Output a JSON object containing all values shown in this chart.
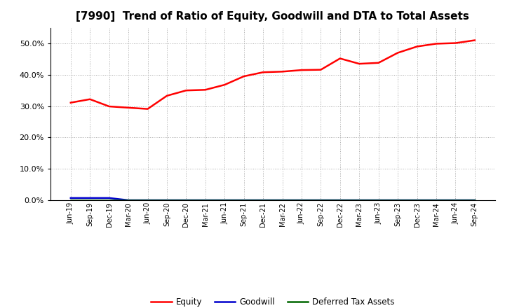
{
  "title": "[7990]  Trend of Ratio of Equity, Goodwill and DTA to Total Assets",
  "x_labels": [
    "Jun-19",
    "Sep-19",
    "Dec-19",
    "Mar-20",
    "Jun-20",
    "Sep-20",
    "Dec-20",
    "Mar-21",
    "Jun-21",
    "Sep-21",
    "Dec-21",
    "Mar-22",
    "Jun-22",
    "Sep-22",
    "Dec-22",
    "Mar-23",
    "Jun-23",
    "Sep-23",
    "Dec-23",
    "Mar-24",
    "Jun-24",
    "Sep-24"
  ],
  "equity": [
    0.311,
    0.322,
    0.299,
    0.295,
    0.291,
    0.333,
    0.35,
    0.352,
    0.368,
    0.395,
    0.408,
    0.41,
    0.415,
    0.416,
    0.452,
    0.435,
    0.438,
    0.47,
    0.49,
    0.499,
    0.501,
    0.51
  ],
  "goodwill": [
    0.007,
    0.007,
    0.007,
    0.0,
    0.0,
    0.0,
    0.0,
    0.0,
    0.0,
    0.0,
    0.0,
    0.0,
    0.0,
    0.0,
    0.0,
    0.0,
    0.0,
    0.0,
    0.0,
    0.0,
    0.0,
    0.0
  ],
  "dta": [
    0.0005,
    0.0005,
    0.0005,
    0.0005,
    0.0005,
    0.0005,
    0.0005,
    0.0005,
    0.0005,
    0.0005,
    0.0005,
    0.0005,
    0.0005,
    0.0005,
    0.0005,
    0.0005,
    0.0005,
    0.0005,
    0.0005,
    0.0005,
    0.0005,
    0.0005
  ],
  "equity_color": "#FF0000",
  "goodwill_color": "#0000CC",
  "dta_color": "#006600",
  "bg_color": "#FFFFFF",
  "plot_bg_color": "#FFFFFF",
  "grid_color": "#AAAAAA",
  "ylim": [
    0.0,
    0.55
  ],
  "yticks": [
    0.0,
    0.1,
    0.2,
    0.3,
    0.4,
    0.5
  ],
  "title_fontsize": 11,
  "legend_labels": [
    "Equity",
    "Goodwill",
    "Deferred Tax Assets"
  ]
}
